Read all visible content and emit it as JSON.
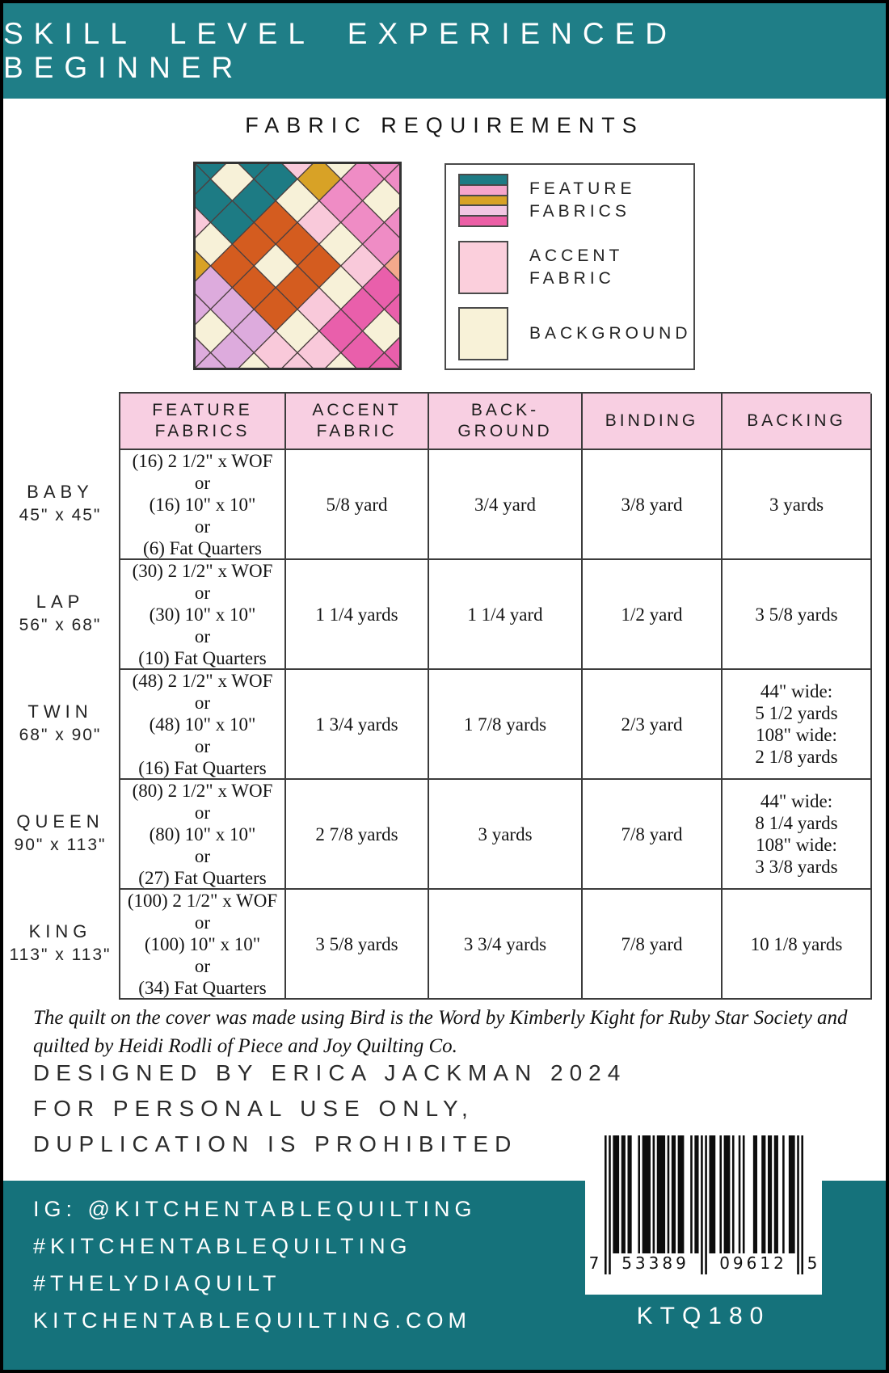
{
  "banner": {
    "text": "SKILL LEVEL EXPERIENCED BEGINNER",
    "bg": "#1f7e87"
  },
  "section_title": "FABRIC REQUIREMENTS",
  "legend": {
    "items": [
      {
        "label_lines": [
          "FEATURE",
          "FABRICS"
        ],
        "colors": [
          "#1d7b84",
          "#f6a5cb",
          "#d8a226",
          "#f2c6e3",
          "#ec5fa6"
        ]
      },
      {
        "label_lines": [
          "ACCENT",
          "FABRIC"
        ],
        "colors": [
          "#fbcfdc"
        ]
      },
      {
        "label_lines": [
          "BACKGROUND"
        ],
        "colors": [
          "#f8f2d8"
        ]
      }
    ]
  },
  "quilt": {
    "cell": 38,
    "size": 258,
    "frame_color": "#333333",
    "line_color": "#4c4040",
    "palette": {
      "C": "#f7f1d8",
      "P": "#f9c9da",
      "T": "#1d7b84",
      "O": "#d45c1f",
      "M": "#ef8cc5",
      "K": "#e95fab",
      "L": "#ddabdd",
      "G": "#d8a226",
      "R": "#f4a98c"
    },
    "rows": [
      "PPPPMMMPCP",
      "PCPCMCMCPC",
      "PPPGMMMRCP",
      "TTTCPCPKKK",
      "TCTOOOCKCK",
      "TTTOCOPKKK",
      "CPCOOOCPCP",
      "PCGLLLPPPP",
      "CPCLCLCPCP",
      "PCPLLLPPPP"
    ]
  },
  "table": {
    "header_bg": "#f8cfe2",
    "headers": [
      [
        "FEATURE",
        "FABRICS"
      ],
      [
        "ACCENT",
        "FABRIC"
      ],
      [
        "BACK-",
        "GROUND"
      ],
      [
        "BINDING"
      ],
      [
        "BACKING"
      ]
    ],
    "rows": [
      {
        "label": [
          "BABY",
          "45\" x 45\""
        ],
        "feature": [
          "(16) 2 1/2\" x WOF",
          "or",
          "(16) 10\" x 10\"",
          "or",
          "(6) Fat Quarters"
        ],
        "accent": [
          "5/8 yard"
        ],
        "background": [
          "3/4 yard"
        ],
        "binding": [
          "3/8 yard"
        ],
        "backing": [
          "3 yards"
        ]
      },
      {
        "label": [
          "LAP",
          "56\" x 68\""
        ],
        "feature": [
          "(30) 2 1/2\" x WOF",
          "or",
          "(30) 10\" x 10\"",
          "or",
          "(10) Fat Quarters"
        ],
        "accent": [
          "1 1/4 yards"
        ],
        "background": [
          "1 1/4 yard"
        ],
        "binding": [
          "1/2 yard"
        ],
        "backing": [
          "3 5/8 yards"
        ]
      },
      {
        "label": [
          "TWIN",
          "68\" x 90\""
        ],
        "feature": [
          "(48) 2 1/2\" x WOF",
          "or",
          "(48) 10\" x 10\"",
          "or",
          "(16) Fat Quarters"
        ],
        "accent": [
          "1 3/4 yards"
        ],
        "background": [
          "1 7/8 yards"
        ],
        "binding": [
          "2/3 yard"
        ],
        "backing": [
          "44\" wide:",
          "5 1/2 yards",
          "108\" wide:",
          "2 1/8 yards"
        ]
      },
      {
        "label": [
          "QUEEN",
          "90\" x 113\""
        ],
        "feature": [
          "(80) 2 1/2\" x WOF",
          "or",
          "(80) 10\" x 10\"",
          "or",
          "(27) Fat Quarters"
        ],
        "accent": [
          "2 7/8 yards"
        ],
        "background": [
          "3 yards"
        ],
        "binding": [
          "7/8 yard"
        ],
        "backing": [
          "44\" wide:",
          "8 1/4 yards",
          "108\" wide:",
          "3 3/8 yards"
        ]
      },
      {
        "label": [
          "KING",
          "113\" x 113\""
        ],
        "feature": [
          "(100) 2 1/2\" x WOF",
          "or",
          "(100) 10\" x 10\"",
          "or",
          "(34) Fat Quarters"
        ],
        "accent": [
          "3 5/8 yards"
        ],
        "background": [
          "3 3/4 yards"
        ],
        "binding": [
          "7/8 yard"
        ],
        "backing": [
          "10 1/8 yards"
        ]
      }
    ]
  },
  "credit": [
    "The quilt on the cover was made using Bird is the Word by Kimberly Kight for Ruby Star Society and",
    "quilted by Heidi Rodli of Piece and Joy Quilting Co."
  ],
  "designed": [
    "DESIGNED BY ERICA JACKMAN 2024",
    "FOR PERSONAL USE ONLY,",
    "DUPLICATION IS PROHIBITED"
  ],
  "footer": {
    "bg": "#15727b",
    "lines": [
      "IG: @KITCHENTABLEQUILTING",
      "#KITCHENTABLEQUILTING",
      "#THELYDIAQUILT",
      "KITCHENTABLEQUILTING.COM"
    ],
    "sku": "KTQ180"
  },
  "barcode": {
    "digits": {
      "prefix": "7",
      "group1": "53389",
      "group2": "09612",
      "check": "5"
    },
    "bits": "10101110110110001011110101111010110111000101101010111001011101001010000110011011011001001110101"
  }
}
